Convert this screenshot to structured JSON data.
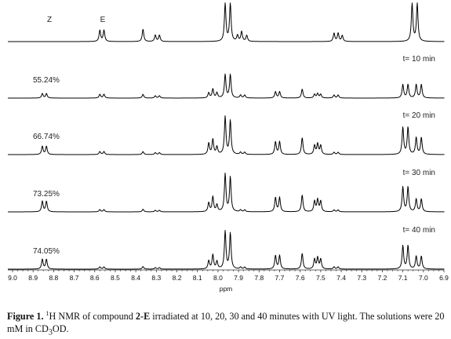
{
  "chart_data": {
    "type": "line",
    "xlabel": "ppm",
    "xlim": [
      9.0,
      6.9
    ],
    "x_ticks": [
      "9.0",
      "8.9",
      "8.8",
      "8.7",
      "8.6",
      "8.5",
      "8.4",
      "8.3",
      "8.2",
      "8.1",
      "8.0",
      "7.9",
      "7.8",
      "7.7",
      "7.6",
      "7.5",
      "7.4",
      "7.3",
      "7.2",
      "7.1",
      "7.0",
      "6.9"
    ],
    "series": [
      {
        "time_label": "",
        "percent_label": "",
        "z_label": "Z",
        "e_label": "E",
        "peaks": [
          {
            "ppm": 8.575,
            "h": 0.3
          },
          {
            "ppm": 8.555,
            "h": 0.3
          },
          {
            "ppm": 8.365,
            "h": 0.33
          },
          {
            "ppm": 8.305,
            "h": 0.17
          },
          {
            "ppm": 8.285,
            "h": 0.17
          },
          {
            "ppm": 7.965,
            "h": 1.0
          },
          {
            "ppm": 7.94,
            "h": 1.0
          },
          {
            "ppm": 7.905,
            "h": 0.16
          },
          {
            "ppm": 7.885,
            "h": 0.26
          },
          {
            "ppm": 7.86,
            "h": 0.16
          },
          {
            "ppm": 7.435,
            "h": 0.22
          },
          {
            "ppm": 7.415,
            "h": 0.22
          },
          {
            "ppm": 7.395,
            "h": 0.16
          },
          {
            "ppm": 7.055,
            "h": 1.0
          },
          {
            "ppm": 7.03,
            "h": 1.0
          }
        ]
      },
      {
        "time_label": "t= 10 min",
        "percent_label": "55.24%",
        "peaks": [
          {
            "ppm": 8.855,
            "h": 0.12
          },
          {
            "ppm": 8.835,
            "h": 0.12
          },
          {
            "ppm": 8.575,
            "h": 0.1
          },
          {
            "ppm": 8.555,
            "h": 0.1
          },
          {
            "ppm": 8.365,
            "h": 0.1
          },
          {
            "ppm": 8.305,
            "h": 0.06
          },
          {
            "ppm": 8.285,
            "h": 0.06
          },
          {
            "ppm": 8.045,
            "h": 0.14
          },
          {
            "ppm": 8.025,
            "h": 0.24
          },
          {
            "ppm": 8.005,
            "h": 0.14
          },
          {
            "ppm": 7.965,
            "h": 0.62
          },
          {
            "ppm": 7.94,
            "h": 0.62
          },
          {
            "ppm": 7.89,
            "h": 0.08
          },
          {
            "ppm": 7.87,
            "h": 0.08
          },
          {
            "ppm": 7.72,
            "h": 0.17
          },
          {
            "ppm": 7.7,
            "h": 0.17
          },
          {
            "ppm": 7.59,
            "h": 0.24
          },
          {
            "ppm": 7.53,
            "h": 0.1
          },
          {
            "ppm": 7.515,
            "h": 0.12
          },
          {
            "ppm": 7.5,
            "h": 0.1
          },
          {
            "ppm": 7.435,
            "h": 0.08
          },
          {
            "ppm": 7.415,
            "h": 0.08
          },
          {
            "ppm": 7.1,
            "h": 0.36
          },
          {
            "ppm": 7.075,
            "h": 0.36
          },
          {
            "ppm": 7.035,
            "h": 0.36
          },
          {
            "ppm": 7.01,
            "h": 0.36
          }
        ]
      },
      {
        "time_label": "t= 20 min",
        "percent_label": "66.74%",
        "peaks": [
          {
            "ppm": 8.855,
            "h": 0.22
          },
          {
            "ppm": 8.835,
            "h": 0.22
          },
          {
            "ppm": 8.575,
            "h": 0.08
          },
          {
            "ppm": 8.555,
            "h": 0.08
          },
          {
            "ppm": 8.365,
            "h": 0.08
          },
          {
            "ppm": 8.305,
            "h": 0.05
          },
          {
            "ppm": 8.285,
            "h": 0.05
          },
          {
            "ppm": 8.045,
            "h": 0.3
          },
          {
            "ppm": 8.025,
            "h": 0.4
          },
          {
            "ppm": 8.005,
            "h": 0.2
          },
          {
            "ppm": 7.965,
            "h": 1.0
          },
          {
            "ppm": 7.94,
            "h": 0.9
          },
          {
            "ppm": 7.89,
            "h": 0.06
          },
          {
            "ppm": 7.87,
            "h": 0.06
          },
          {
            "ppm": 7.72,
            "h": 0.34
          },
          {
            "ppm": 7.7,
            "h": 0.34
          },
          {
            "ppm": 7.59,
            "h": 0.45
          },
          {
            "ppm": 7.53,
            "h": 0.24
          },
          {
            "ppm": 7.515,
            "h": 0.28
          },
          {
            "ppm": 7.5,
            "h": 0.24
          },
          {
            "ppm": 7.435,
            "h": 0.06
          },
          {
            "ppm": 7.415,
            "h": 0.06
          },
          {
            "ppm": 7.1,
            "h": 0.72
          },
          {
            "ppm": 7.075,
            "h": 0.72
          },
          {
            "ppm": 7.035,
            "h": 0.45
          },
          {
            "ppm": 7.01,
            "h": 0.45
          }
        ]
      },
      {
        "time_label": "t= 30 min",
        "percent_label": "73.25%",
        "peaks": [
          {
            "ppm": 8.855,
            "h": 0.28
          },
          {
            "ppm": 8.835,
            "h": 0.28
          },
          {
            "ppm": 8.575,
            "h": 0.06
          },
          {
            "ppm": 8.555,
            "h": 0.06
          },
          {
            "ppm": 8.365,
            "h": 0.07
          },
          {
            "ppm": 8.305,
            "h": 0.04
          },
          {
            "ppm": 8.285,
            "h": 0.04
          },
          {
            "ppm": 8.045,
            "h": 0.24
          },
          {
            "ppm": 8.025,
            "h": 0.4
          },
          {
            "ppm": 8.005,
            "h": 0.18
          },
          {
            "ppm": 7.965,
            "h": 1.0
          },
          {
            "ppm": 7.94,
            "h": 0.92
          },
          {
            "ppm": 7.89,
            "h": 0.05
          },
          {
            "ppm": 7.87,
            "h": 0.05
          },
          {
            "ppm": 7.72,
            "h": 0.38
          },
          {
            "ppm": 7.7,
            "h": 0.38
          },
          {
            "ppm": 7.59,
            "h": 0.45
          },
          {
            "ppm": 7.53,
            "h": 0.28
          },
          {
            "ppm": 7.515,
            "h": 0.32
          },
          {
            "ppm": 7.5,
            "h": 0.28
          },
          {
            "ppm": 7.435,
            "h": 0.05
          },
          {
            "ppm": 7.415,
            "h": 0.05
          },
          {
            "ppm": 7.1,
            "h": 0.66
          },
          {
            "ppm": 7.075,
            "h": 0.66
          },
          {
            "ppm": 7.035,
            "h": 0.34
          },
          {
            "ppm": 7.01,
            "h": 0.34
          }
        ]
      },
      {
        "time_label": "t= 40 min",
        "percent_label": "74.05%",
        "peaks": [
          {
            "ppm": 8.855,
            "h": 0.26
          },
          {
            "ppm": 8.835,
            "h": 0.26
          },
          {
            "ppm": 8.575,
            "h": 0.06
          },
          {
            "ppm": 8.555,
            "h": 0.06
          },
          {
            "ppm": 8.365,
            "h": 0.07
          },
          {
            "ppm": 8.305,
            "h": 0.04
          },
          {
            "ppm": 8.285,
            "h": 0.04
          },
          {
            "ppm": 8.045,
            "h": 0.22
          },
          {
            "ppm": 8.025,
            "h": 0.38
          },
          {
            "ppm": 8.005,
            "h": 0.2
          },
          {
            "ppm": 7.965,
            "h": 1.0
          },
          {
            "ppm": 7.94,
            "h": 0.95
          },
          {
            "ppm": 7.89,
            "h": 0.05
          },
          {
            "ppm": 7.87,
            "h": 0.05
          },
          {
            "ppm": 7.72,
            "h": 0.36
          },
          {
            "ppm": 7.7,
            "h": 0.36
          },
          {
            "ppm": 7.59,
            "h": 0.42
          },
          {
            "ppm": 7.53,
            "h": 0.26
          },
          {
            "ppm": 7.515,
            "h": 0.3
          },
          {
            "ppm": 7.5,
            "h": 0.26
          },
          {
            "ppm": 7.435,
            "h": 0.06
          },
          {
            "ppm": 7.415,
            "h": 0.06
          },
          {
            "ppm": 7.1,
            "h": 0.62
          },
          {
            "ppm": 7.075,
            "h": 0.62
          },
          {
            "ppm": 7.035,
            "h": 0.34
          },
          {
            "ppm": 7.01,
            "h": 0.34
          }
        ]
      }
    ]
  },
  "caption": {
    "label": "Figure 1.",
    "sup": "1",
    "text_a": "H NMR of compound ",
    "compound": "2-E",
    "text_b": " irradiated at 10, 20, 30 and 40 minutes with UV light. The solutions were 20 mM in CD",
    "sub": "3",
    "text_c": "OD."
  }
}
